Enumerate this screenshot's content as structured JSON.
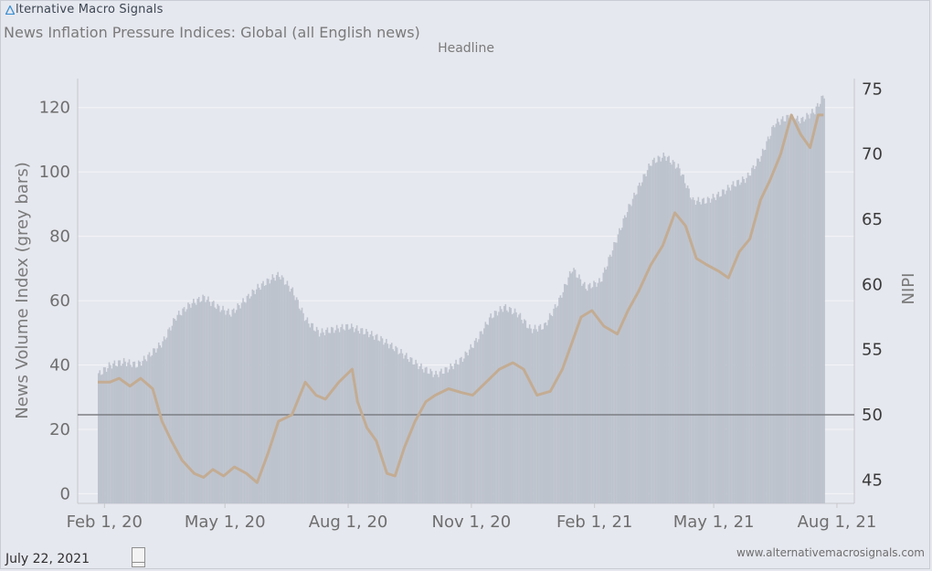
{
  "brand": {
    "name": "lternative Macro Signals",
    "logo_icon": "triangle-a-logo-icon",
    "logo_color": "#3b8fd1"
  },
  "header": {
    "title": "News Inflation Pressure Indices: Global (all English news)",
    "subtitle": "Headline"
  },
  "footer": {
    "date": "July 22, 2021",
    "website": "www.alternativemacrosignals.com"
  },
  "chart_data": {
    "type": "area",
    "xlabel": "",
    "ylabel_left": "News Volume Index (grey bars)",
    "ylabel_right": "NIPI",
    "x_ticks": [
      "Feb 1, 20",
      "May 1, 20",
      "Aug 1, 20",
      "Nov 1, 20",
      "Feb 1, 21",
      "May 1, 21",
      "Aug 1, 21"
    ],
    "left_ticks": [
      "0",
      "20",
      "40",
      "60",
      "80",
      "100",
      "120"
    ],
    "right_ticks": [
      "45",
      "50",
      "55",
      "60",
      "65",
      "70",
      "75"
    ],
    "ylim_left": [
      -3,
      129
    ],
    "ylim_right": [
      43.2,
      75.8
    ],
    "x_range": [
      "2020-01-12",
      "2021-08-14"
    ],
    "reference_line": {
      "axis": "right",
      "value": 50
    },
    "grid": true,
    "colors": {
      "bars": "#bdc3cd",
      "line": "#c3ac93",
      "reference": "#7d7f84",
      "grid": "#f3f4f7"
    },
    "series": [
      {
        "kind": "bars",
        "axis": "left",
        "points": [
          [
            "2020-01-27",
            37
          ],
          [
            "2020-02-05",
            40
          ],
          [
            "2020-02-15",
            41
          ],
          [
            "2020-02-25",
            40
          ],
          [
            "2020-03-05",
            43
          ],
          [
            "2020-03-15",
            47
          ],
          [
            "2020-03-25",
            55
          ],
          [
            "2020-04-05",
            59
          ],
          [
            "2020-04-15",
            61
          ],
          [
            "2020-04-25",
            58
          ],
          [
            "2020-05-05",
            56
          ],
          [
            "2020-05-15",
            60
          ],
          [
            "2020-05-25",
            64
          ],
          [
            "2020-06-05",
            67
          ],
          [
            "2020-06-10",
            68
          ],
          [
            "2020-06-20",
            63
          ],
          [
            "2020-06-30",
            54
          ],
          [
            "2020-07-10",
            50
          ],
          [
            "2020-07-20",
            51
          ],
          [
            "2020-08-01",
            52
          ],
          [
            "2020-08-15",
            50
          ],
          [
            "2020-08-25",
            48
          ],
          [
            "2020-09-05",
            45
          ],
          [
            "2020-09-15",
            42
          ],
          [
            "2020-09-25",
            39
          ],
          [
            "2020-10-05",
            37
          ],
          [
            "2020-10-15",
            39
          ],
          [
            "2020-10-25",
            42
          ],
          [
            "2020-11-05",
            48
          ],
          [
            "2020-11-15",
            55
          ],
          [
            "2020-11-25",
            58
          ],
          [
            "2020-12-05",
            56
          ],
          [
            "2020-12-15",
            51
          ],
          [
            "2020-12-25",
            52
          ],
          [
            "2021-01-05",
            60
          ],
          [
            "2021-01-15",
            70
          ],
          [
            "2021-01-25",
            64
          ],
          [
            "2021-02-05",
            66
          ],
          [
            "2021-02-15",
            77
          ],
          [
            "2021-02-25",
            88
          ],
          [
            "2021-03-05",
            95
          ],
          [
            "2021-03-15",
            103
          ],
          [
            "2021-03-25",
            105
          ],
          [
            "2021-04-05",
            101
          ],
          [
            "2021-04-15",
            91
          ],
          [
            "2021-04-25",
            91
          ],
          [
            "2021-05-05",
            93
          ],
          [
            "2021-05-15",
            96
          ],
          [
            "2021-05-25",
            98
          ],
          [
            "2021-06-05",
            105
          ],
          [
            "2021-06-15",
            115
          ],
          [
            "2021-06-25",
            117
          ],
          [
            "2021-07-05",
            116
          ],
          [
            "2021-07-15",
            119
          ],
          [
            "2021-07-22",
            124
          ]
        ]
      },
      {
        "kind": "line",
        "axis": "right",
        "points": [
          [
            "2020-01-27",
            52.5
          ],
          [
            "2020-02-05",
            52.5
          ],
          [
            "2020-02-12",
            52.8
          ],
          [
            "2020-02-20",
            52.2
          ],
          [
            "2020-02-28",
            52.8
          ],
          [
            "2020-03-08",
            52.0
          ],
          [
            "2020-03-15",
            49.5
          ],
          [
            "2020-03-22",
            48.0
          ],
          [
            "2020-03-30",
            46.5
          ],
          [
            "2020-04-08",
            45.5
          ],
          [
            "2020-04-15",
            45.2
          ],
          [
            "2020-04-22",
            45.8
          ],
          [
            "2020-04-30",
            45.3
          ],
          [
            "2020-05-08",
            46.0
          ],
          [
            "2020-05-17",
            45.5
          ],
          [
            "2020-05-25",
            44.8
          ],
          [
            "2020-06-02",
            47.0
          ],
          [
            "2020-06-10",
            49.5
          ],
          [
            "2020-06-20",
            50.0
          ],
          [
            "2020-06-30",
            52.5
          ],
          [
            "2020-07-08",
            51.5
          ],
          [
            "2020-07-15",
            51.2
          ],
          [
            "2020-07-25",
            52.5
          ],
          [
            "2020-08-04",
            53.5
          ],
          [
            "2020-08-08",
            51.0
          ],
          [
            "2020-08-15",
            49.0
          ],
          [
            "2020-08-22",
            48.0
          ],
          [
            "2020-08-30",
            45.5
          ],
          [
            "2020-09-05",
            45.3
          ],
          [
            "2020-09-12",
            47.5
          ],
          [
            "2020-09-20",
            49.5
          ],
          [
            "2020-09-28",
            51.0
          ],
          [
            "2020-10-05",
            51.5
          ],
          [
            "2020-10-15",
            52.0
          ],
          [
            "2020-10-25",
            51.7
          ],
          [
            "2020-11-02",
            51.5
          ],
          [
            "2020-11-12",
            52.5
          ],
          [
            "2020-11-22",
            53.5
          ],
          [
            "2020-12-02",
            54.0
          ],
          [
            "2020-12-10",
            53.5
          ],
          [
            "2020-12-20",
            51.5
          ],
          [
            "2020-12-30",
            51.8
          ],
          [
            "2021-01-08",
            53.5
          ],
          [
            "2021-01-15",
            55.5
          ],
          [
            "2021-01-22",
            57.5
          ],
          [
            "2021-01-30",
            58.0
          ],
          [
            "2021-02-08",
            56.8
          ],
          [
            "2021-02-18",
            56.2
          ],
          [
            "2021-02-26",
            58.0
          ],
          [
            "2021-03-06",
            59.5
          ],
          [
            "2021-03-15",
            61.5
          ],
          [
            "2021-03-24",
            63.0
          ],
          [
            "2021-04-02",
            65.5
          ],
          [
            "2021-04-10",
            64.5
          ],
          [
            "2021-04-18",
            62.0
          ],
          [
            "2021-04-26",
            61.5
          ],
          [
            "2021-05-05",
            61.0
          ],
          [
            "2021-05-12",
            60.5
          ],
          [
            "2021-05-20",
            62.5
          ],
          [
            "2021-05-28",
            63.5
          ],
          [
            "2021-06-05",
            66.5
          ],
          [
            "2021-06-12",
            68.0
          ],
          [
            "2021-06-20",
            70.0
          ],
          [
            "2021-06-28",
            73.0
          ],
          [
            "2021-07-05",
            71.5
          ],
          [
            "2021-07-12",
            70.5
          ],
          [
            "2021-07-18",
            73.0
          ],
          [
            "2021-07-22",
            73.0
          ]
        ]
      }
    ]
  }
}
